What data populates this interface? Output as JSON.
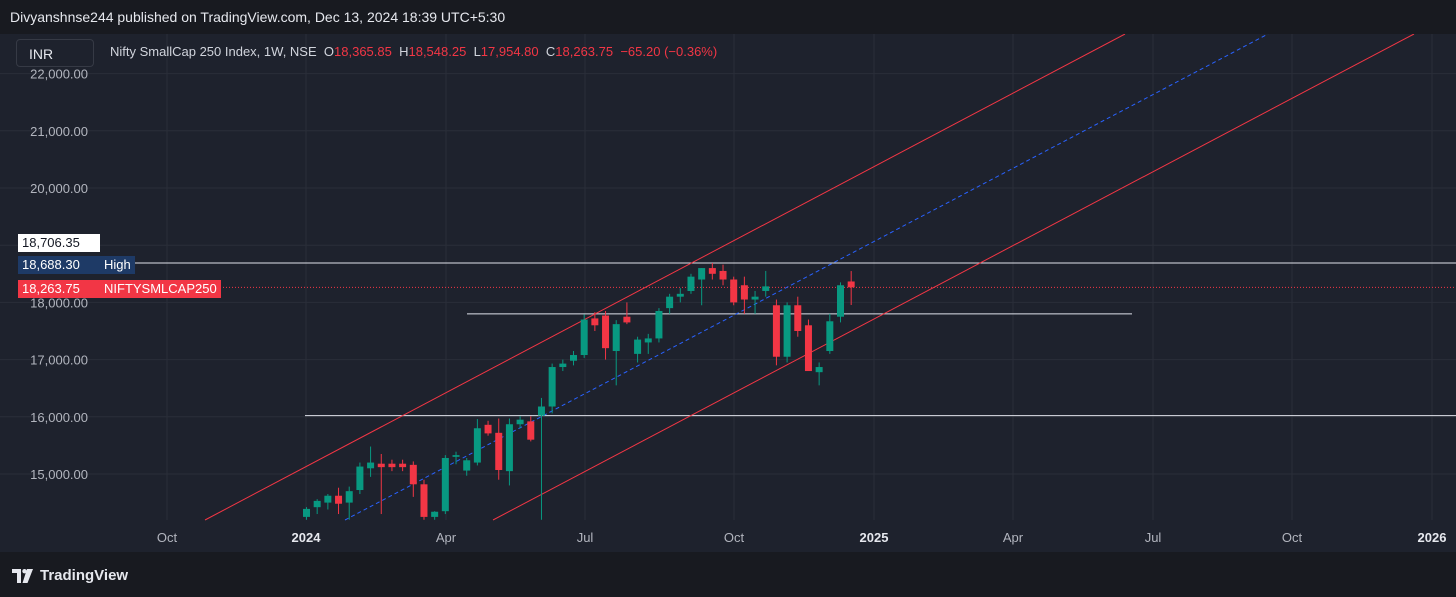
{
  "header": {
    "published": "Divyanshnse244 published on TradingView.com, Dec 13, 2024 18:39 UTC+5:30"
  },
  "currency_button": "INR",
  "legend": {
    "symbol": "Nifty SmallCap 250 Index, 1W, NSE",
    "o_label": "O",
    "o_value": "18,365.85",
    "h_label": "H",
    "h_value": "18,548.25",
    "l_label": "L",
    "l_value": "17,954.80",
    "c_label": "C",
    "c_value": "18,263.75",
    "change": "−65.20 (−0.36%)"
  },
  "price_tags": {
    "crosshair": "18,706.35",
    "high_value": "18,688.30",
    "high_label": "High",
    "last_value": "18,263.75",
    "last_label": "NIFTYSMLCAP250"
  },
  "footer": {
    "brand": "TradingView"
  },
  "colors": {
    "up": "#089981",
    "down": "#f23645",
    "channel": "#f23645",
    "midline": "#2962ff",
    "background": "#1e222d"
  },
  "chart_data": {
    "type": "candlestick",
    "title": "Nifty SmallCap 250 Index, 1W, NSE",
    "y_ticks": [
      15000,
      16000,
      17000,
      18000,
      19000,
      20000,
      21000,
      22000
    ],
    "y_tick_labels": [
      "15,000.00",
      "16,000.00",
      "17,000.00",
      "18,000.00",
      "19,000.00",
      "20,000.00",
      "21,000.00",
      "22,000.00"
    ],
    "ylim": [
      14200,
      22300
    ],
    "x_ticks": [
      {
        "label": "Oct",
        "bold": false
      },
      {
        "label": "2024",
        "bold": true
      },
      {
        "label": "Apr",
        "bold": false
      },
      {
        "label": "Jul",
        "bold": false
      },
      {
        "label": "Oct",
        "bold": false
      },
      {
        "label": "2025",
        "bold": true
      },
      {
        "label": "Apr",
        "bold": false
      },
      {
        "label": "Jul",
        "bold": false
      },
      {
        "label": "Oct",
        "bold": false
      },
      {
        "label": "2026",
        "bold": true
      }
    ],
    "horizontal_levels": [
      18688.3,
      17800,
      16020
    ],
    "candles": [
      {
        "o": 14250,
        "h": 14420,
        "l": 14200,
        "c": 14390
      },
      {
        "o": 14420,
        "h": 14560,
        "l": 14300,
        "c": 14530
      },
      {
        "o": 14500,
        "h": 14650,
        "l": 14380,
        "c": 14620
      },
      {
        "o": 14620,
        "h": 14760,
        "l": 14300,
        "c": 14480
      },
      {
        "o": 14500,
        "h": 14780,
        "l": 14200,
        "c": 14700
      },
      {
        "o": 14720,
        "h": 15200,
        "l": 14650,
        "c": 15130
      },
      {
        "o": 15100,
        "h": 15480,
        "l": 14950,
        "c": 15200
      },
      {
        "o": 15180,
        "h": 15350,
        "l": 14300,
        "c": 15120
      },
      {
        "o": 15180,
        "h": 15250,
        "l": 15050,
        "c": 15120
      },
      {
        "o": 15180,
        "h": 15250,
        "l": 15050,
        "c": 15120
      },
      {
        "o": 15160,
        "h": 15220,
        "l": 14600,
        "c": 14820
      },
      {
        "o": 14820,
        "h": 14900,
        "l": 14200,
        "c": 14250
      },
      {
        "o": 14250,
        "h": 14350,
        "l": 14200,
        "c": 14340
      },
      {
        "o": 14350,
        "h": 15330,
        "l": 14300,
        "c": 15280
      },
      {
        "o": 15300,
        "h": 15390,
        "l": 15170,
        "c": 15330
      },
      {
        "o": 15060,
        "h": 15280,
        "l": 14970,
        "c": 15240
      },
      {
        "o": 15200,
        "h": 15960,
        "l": 15150,
        "c": 15800
      },
      {
        "o": 15860,
        "h": 15930,
        "l": 15670,
        "c": 15710
      },
      {
        "o": 15720,
        "h": 15970,
        "l": 14900,
        "c": 15070
      },
      {
        "o": 15050,
        "h": 15970,
        "l": 14800,
        "c": 15870
      },
      {
        "o": 15870,
        "h": 16010,
        "l": 15800,
        "c": 15950
      },
      {
        "o": 15920,
        "h": 16010,
        "l": 15570,
        "c": 15600
      },
      {
        "o": 16020,
        "h": 16330,
        "l": 14200,
        "c": 16180
      },
      {
        "o": 16180,
        "h": 16930,
        "l": 16060,
        "c": 16870
      },
      {
        "o": 16870,
        "h": 17000,
        "l": 16800,
        "c": 16930
      },
      {
        "o": 16980,
        "h": 17150,
        "l": 16900,
        "c": 17080
      },
      {
        "o": 17080,
        "h": 17790,
        "l": 17030,
        "c": 17700
      },
      {
        "o": 17720,
        "h": 17830,
        "l": 17500,
        "c": 17600
      },
      {
        "o": 17770,
        "h": 17850,
        "l": 17000,
        "c": 17200
      },
      {
        "o": 17150,
        "h": 17690,
        "l": 16550,
        "c": 17620
      },
      {
        "o": 17750,
        "h": 18000,
        "l": 17620,
        "c": 17650
      },
      {
        "o": 17100,
        "h": 17400,
        "l": 16950,
        "c": 17350
      },
      {
        "o": 17300,
        "h": 17450,
        "l": 17100,
        "c": 17370
      },
      {
        "o": 17370,
        "h": 17900,
        "l": 17300,
        "c": 17850
      },
      {
        "o": 17900,
        "h": 18150,
        "l": 17800,
        "c": 18100
      },
      {
        "o": 18100,
        "h": 18250,
        "l": 18000,
        "c": 18150
      },
      {
        "o": 18200,
        "h": 18500,
        "l": 18150,
        "c": 18450
      },
      {
        "o": 18400,
        "h": 18600,
        "l": 17950,
        "c": 18600
      },
      {
        "o": 18600,
        "h": 18688,
        "l": 18400,
        "c": 18500
      },
      {
        "o": 18550,
        "h": 18660,
        "l": 18300,
        "c": 18400
      },
      {
        "o": 18400,
        "h": 18450,
        "l": 17950,
        "c": 18000
      },
      {
        "o": 18300,
        "h": 18450,
        "l": 17800,
        "c": 18050
      },
      {
        "o": 18050,
        "h": 18200,
        "l": 17800,
        "c": 18100
      },
      {
        "o": 18200,
        "h": 18550,
        "l": 18100,
        "c": 18280
      },
      {
        "o": 17950,
        "h": 18050,
        "l": 16900,
        "c": 17050
      },
      {
        "o": 17050,
        "h": 18000,
        "l": 16950,
        "c": 17950
      },
      {
        "o": 17950,
        "h": 18100,
        "l": 17400,
        "c": 17500
      },
      {
        "o": 17600,
        "h": 17700,
        "l": 16850,
        "c": 16800
      },
      {
        "o": 16780,
        "h": 16950,
        "l": 16550,
        "c": 16870
      },
      {
        "o": 17150,
        "h": 17800,
        "l": 17100,
        "c": 17670
      },
      {
        "o": 17750,
        "h": 18350,
        "l": 17650,
        "c": 18300
      },
      {
        "o": 18365.85,
        "h": 18548.25,
        "l": 17954.8,
        "c": 18263.75
      }
    ]
  }
}
